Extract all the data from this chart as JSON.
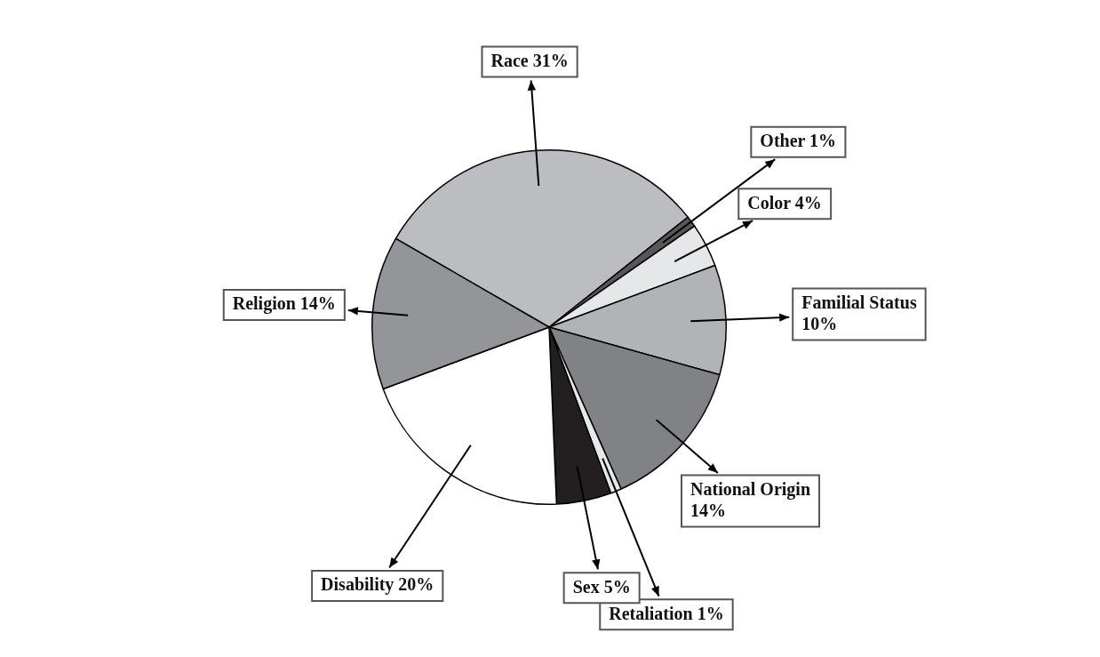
{
  "chart_data": {
    "type": "pie",
    "categories": [
      "Race",
      "Other",
      "Color",
      "Familial Status",
      "National Origin",
      "Retaliation",
      "Sex",
      "Disability",
      "Religion"
    ],
    "values": [
      31,
      1,
      4,
      10,
      14,
      1,
      5,
      20,
      14
    ],
    "value_labels": [
      "31%",
      "1%",
      "4%",
      "10%",
      "14%",
      "1%",
      "5%",
      "20%",
      "14%"
    ],
    "colors": [
      "#bcbdc0",
      "#58585a",
      "#e6e7e8",
      "#b1b3b6",
      "#808285",
      "#e6e7e8",
      "#231f20",
      "#ffffff",
      "#939598"
    ]
  }
}
